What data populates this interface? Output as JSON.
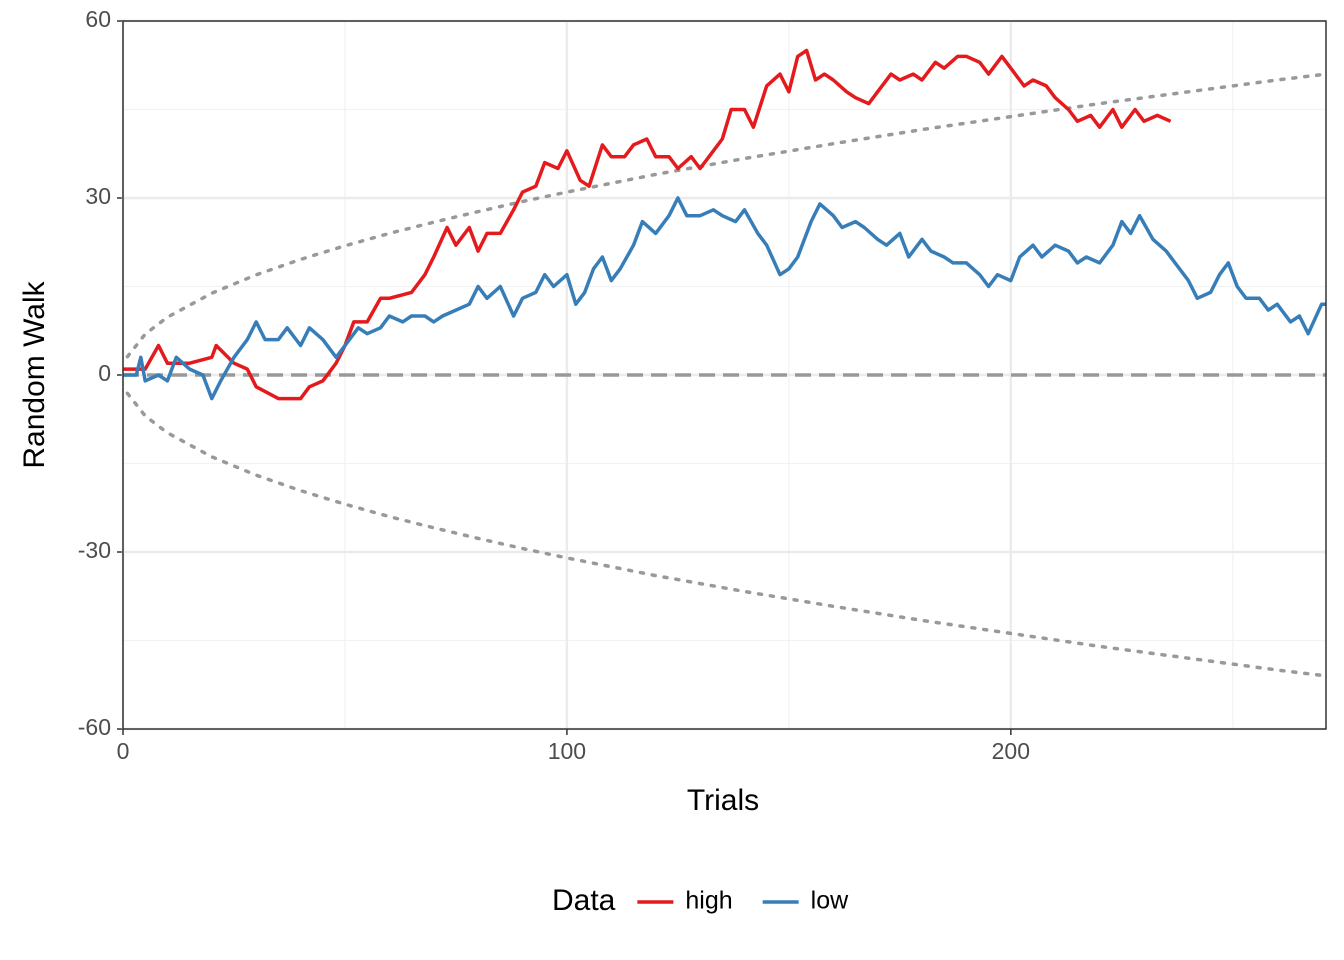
{
  "chart_data": {
    "type": "line",
    "x_label": "Trials",
    "y_label": "Random Walk",
    "xlim": [
      0,
      271
    ],
    "ylim": [
      -60,
      60
    ],
    "xticks": [
      0,
      100,
      200
    ],
    "yticks": [
      -60,
      -30,
      0,
      30,
      60
    ],
    "grid": true,
    "legend_title": "Data",
    "legend_position": "bottom",
    "hline": {
      "value": 0,
      "color": "#999999",
      "style": "dashed"
    },
    "reference_lines": [
      {
        "color": "#999999",
        "style": "dotted",
        "x": [
          1,
          5,
          10,
          20,
          30,
          40,
          50,
          60,
          70,
          80,
          90,
          100,
          120,
          140,
          160,
          180,
          200,
          220,
          240,
          260,
          271
        ],
        "values": [
          3.1,
          6.93,
          9.8,
          13.86,
          16.98,
          19.6,
          21.9,
          24.0,
          25.9,
          27.7,
          29.4,
          31.0,
          34.0,
          36.7,
          39.2,
          41.6,
          43.8,
          46.0,
          48.0,
          50.0,
          51.0
        ]
      },
      {
        "color": "#999999",
        "style": "dotted",
        "x": [
          1,
          5,
          10,
          20,
          30,
          40,
          50,
          60,
          70,
          80,
          90,
          100,
          120,
          140,
          160,
          180,
          200,
          220,
          240,
          260,
          271
        ],
        "values": [
          -3.1,
          -6.93,
          -9.8,
          -13.86,
          -16.98,
          -19.6,
          -21.9,
          -24.0,
          -25.9,
          -27.7,
          -29.4,
          -31.0,
          -34.0,
          -36.7,
          -39.2,
          -41.6,
          -43.8,
          -46.0,
          -48.0,
          -50.0,
          -51.0
        ]
      }
    ],
    "series": [
      {
        "name": "high",
        "color": "#e41a1c",
        "x": [
          0,
          5,
          8,
          10,
          15,
          20,
          21,
          25,
          28,
          30,
          35,
          40,
          42,
          45,
          48,
          50,
          52,
          55,
          58,
          60,
          65,
          68,
          70,
          73,
          75,
          78,
          80,
          82,
          85,
          88,
          90,
          93,
          95,
          98,
          100,
          103,
          105,
          108,
          110,
          113,
          115,
          118,
          120,
          123,
          125,
          128,
          130,
          132,
          135,
          137,
          140,
          142,
          145,
          148,
          150,
          152,
          154,
          156,
          158,
          160,
          163,
          165,
          168,
          170,
          173,
          175,
          178,
          180,
          183,
          185,
          188,
          190,
          193,
          195,
          198,
          200,
          203,
          205,
          208,
          210,
          213,
          215,
          218,
          220,
          223,
          225,
          228,
          230,
          233,
          236
        ],
        "values": [
          1,
          1,
          5,
          2,
          2,
          3,
          5,
          2,
          1,
          -2,
          -4,
          -4,
          -2,
          -1,
          2,
          5,
          9,
          9,
          13,
          13,
          14,
          17,
          20,
          25,
          22,
          25,
          21,
          24,
          24,
          28,
          31,
          32,
          36,
          35,
          38,
          33,
          32,
          39,
          37,
          37,
          39,
          40,
          37,
          37,
          35,
          37,
          35,
          37,
          40,
          45,
          45,
          42,
          49,
          51,
          48,
          54,
          55,
          50,
          51,
          50,
          48,
          47,
          46,
          48,
          51,
          50,
          51,
          50,
          53,
          52,
          54,
          54,
          53,
          51,
          54,
          52,
          49,
          50,
          49,
          47,
          45,
          43,
          44,
          42,
          45,
          42,
          45,
          43,
          44,
          43
        ]
      },
      {
        "name": "low",
        "color": "#377eb8",
        "x": [
          0,
          3,
          4,
          5,
          8,
          10,
          12,
          15,
          18,
          20,
          22,
          25,
          28,
          30,
          32,
          35,
          37,
          40,
          42,
          45,
          48,
          50,
          53,
          55,
          58,
          60,
          63,
          65,
          68,
          70,
          72,
          75,
          78,
          80,
          82,
          85,
          88,
          90,
          93,
          95,
          97,
          100,
          102,
          104,
          106,
          108,
          110,
          112,
          115,
          117,
          120,
          123,
          125,
          127,
          130,
          133,
          135,
          138,
          140,
          143,
          145,
          148,
          150,
          152,
          155,
          157,
          160,
          162,
          165,
          167,
          170,
          172,
          175,
          177,
          180,
          182,
          185,
          187,
          190,
          193,
          195,
          197,
          200,
          202,
          205,
          207,
          210,
          213,
          215,
          217,
          220,
          223,
          225,
          227,
          229,
          232,
          235,
          237,
          240,
          242,
          245,
          247,
          249,
          251,
          253,
          256,
          258,
          260,
          263,
          265,
          267,
          270,
          271
        ],
        "values": [
          0,
          0,
          3,
          -1,
          0,
          -1,
          3,
          1,
          0,
          -4,
          -1,
          3,
          6,
          9,
          6,
          6,
          8,
          5,
          8,
          6,
          3,
          5,
          8,
          7,
          8,
          10,
          9,
          10,
          10,
          9,
          10,
          11,
          12,
          15,
          13,
          15,
          10,
          13,
          14,
          17,
          15,
          17,
          12,
          14,
          18,
          20,
          16,
          18,
          22,
          26,
          24,
          27,
          30,
          27,
          27,
          28,
          27,
          26,
          28,
          24,
          22,
          17,
          18,
          20,
          26,
          29,
          27,
          25,
          26,
          25,
          23,
          22,
          24,
          20,
          23,
          21,
          20,
          19,
          19,
          17,
          15,
          17,
          16,
          20,
          22,
          20,
          22,
          21,
          19,
          20,
          19,
          22,
          26,
          24,
          27,
          23,
          21,
          19,
          16,
          13,
          14,
          17,
          19,
          15,
          13,
          13,
          11,
          12,
          9,
          10,
          7,
          12,
          12
        ]
      }
    ]
  }
}
